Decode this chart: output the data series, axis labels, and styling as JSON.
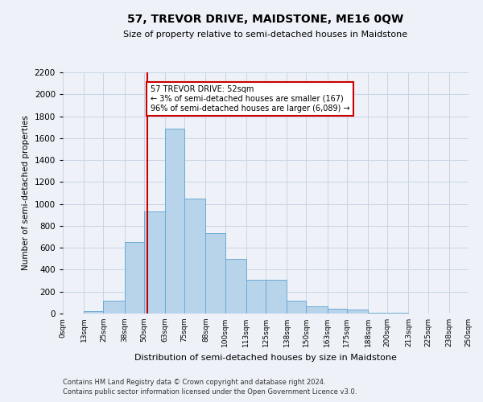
{
  "title": "57, TREVOR DRIVE, MAIDSTONE, ME16 0QW",
  "subtitle": "Size of property relative to semi-detached houses in Maidstone",
  "xlabel": "Distribution of semi-detached houses by size in Maidstone",
  "ylabel": "Number of semi-detached properties",
  "footer1": "Contains HM Land Registry data © Crown copyright and database right 2024.",
  "footer2": "Contains public sector information licensed under the Open Government Licence v3.0.",
  "annotation_title": "57 TREVOR DRIVE: 52sqm",
  "annotation_line1": "← 3% of semi-detached houses are smaller (167)",
  "annotation_line2": "96% of semi-detached houses are larger (6,089) →",
  "property_size": 52,
  "bar_edges": [
    0,
    13,
    25,
    38,
    50,
    63,
    75,
    88,
    100,
    113,
    125,
    138,
    150,
    163,
    175,
    188,
    200,
    213,
    225,
    238,
    250
  ],
  "bar_heights": [
    0,
    25,
    120,
    650,
    930,
    1690,
    1050,
    730,
    500,
    310,
    310,
    120,
    65,
    45,
    35,
    10,
    5,
    2,
    1,
    0
  ],
  "tick_labels": [
    "0sqm",
    "13sqm",
    "25sqm",
    "38sqm",
    "50sqm",
    "63sqm",
    "75sqm",
    "88sqm",
    "100sqm",
    "113sqm",
    "125sqm",
    "138sqm",
    "150sqm",
    "163sqm",
    "175sqm",
    "188sqm",
    "200sqm",
    "213sqm",
    "225sqm",
    "238sqm",
    "250sqm"
  ],
  "bar_color": "#b8d4ea",
  "bar_edge_color": "#6aaad4",
  "vline_color": "#cc0000",
  "annotation_box_color": "#cc0000",
  "grid_color": "#c8d4e4",
  "background_color": "#eef2f8",
  "ylim": [
    0,
    2200
  ],
  "yticks": [
    0,
    200,
    400,
    600,
    800,
    1000,
    1200,
    1400,
    1600,
    1800,
    2000,
    2200
  ]
}
